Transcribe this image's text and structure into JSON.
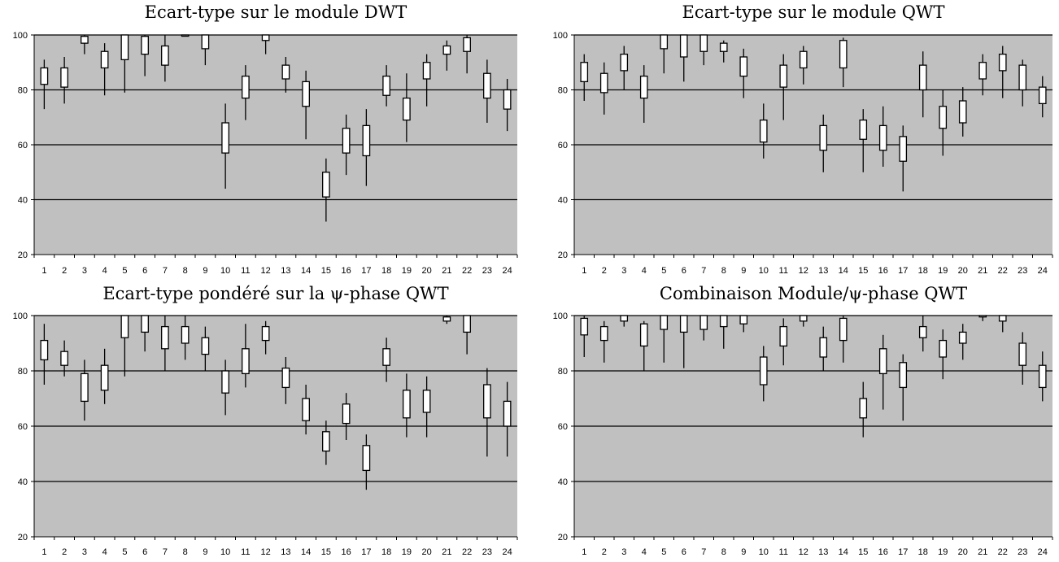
{
  "chart_data": [
    {
      "type": "candlestick",
      "title": "Ecart-type sur le module DWT",
      "ylim": [
        20,
        100
      ],
      "yticks": [
        20,
        40,
        60,
        80,
        100
      ],
      "grid": true,
      "colors": {
        "plot_bg": "#c0c0c0",
        "box_fill": "#ffffff",
        "line": "#000000"
      },
      "categories": [
        "1",
        "2",
        "3",
        "4",
        "5",
        "6",
        "7",
        "8",
        "9",
        "10",
        "11",
        "12",
        "13",
        "14",
        "15",
        "16",
        "17",
        "18",
        "19",
        "20",
        "21",
        "22",
        "23",
        "24"
      ],
      "items": [
        {
          "low": 73,
          "q1": 82,
          "q3": 88,
          "high": 91
        },
        {
          "low": 75,
          "q1": 81,
          "q3": 88,
          "high": 92
        },
        {
          "low": 93,
          "q1": 97,
          "q3": 99.5,
          "high": 100
        },
        {
          "low": 78,
          "q1": 88,
          "q3": 94,
          "high": 97
        },
        {
          "low": 79,
          "q1": 91,
          "q3": 100,
          "high": 100
        },
        {
          "low": 85,
          "q1": 93,
          "q3": 99.5,
          "high": 100
        },
        {
          "low": 83,
          "q1": 89,
          "q3": 96,
          "high": 100
        },
        {
          "low": 99.5,
          "q1": 99.7,
          "q3": 100,
          "high": 100
        },
        {
          "low": 89,
          "q1": 95,
          "q3": 100,
          "high": 100
        },
        {
          "low": 44,
          "q1": 57,
          "q3": 68,
          "high": 75
        },
        {
          "low": 69,
          "q1": 77,
          "q3": 85,
          "high": 89
        },
        {
          "low": 93,
          "q1": 98,
          "q3": 100,
          "high": 100
        },
        {
          "low": 79,
          "q1": 84,
          "q3": 89,
          "high": 92
        },
        {
          "low": 62,
          "q1": 74,
          "q3": 83,
          "high": 87
        },
        {
          "low": 32,
          "q1": 41,
          "q3": 50,
          "high": 55
        },
        {
          "low": 49,
          "q1": 57,
          "q3": 66,
          "high": 71
        },
        {
          "low": 45,
          "q1": 56,
          "q3": 67,
          "high": 73
        },
        {
          "low": 74,
          "q1": 78,
          "q3": 85,
          "high": 89
        },
        {
          "low": 61,
          "q1": 69,
          "q3": 77,
          "high": 86
        },
        {
          "low": 74,
          "q1": 84,
          "q3": 90,
          "high": 93
        },
        {
          "low": 87,
          "q1": 93,
          "q3": 96,
          "high": 98
        },
        {
          "low": 86,
          "q1": 94,
          "q3": 99,
          "high": 100
        },
        {
          "low": 68,
          "q1": 77,
          "q3": 86,
          "high": 91
        },
        {
          "low": 65,
          "q1": 73,
          "q3": 80,
          "high": 84
        }
      ]
    },
    {
      "type": "candlestick",
      "title": "Ecart-type sur le module QWT",
      "ylim": [
        20,
        100
      ],
      "yticks": [
        20,
        40,
        60,
        80,
        100
      ],
      "grid": true,
      "colors": {
        "plot_bg": "#c0c0c0",
        "box_fill": "#ffffff",
        "line": "#000000"
      },
      "categories": [
        "1",
        "2",
        "3",
        "4",
        "5",
        "6",
        "7",
        "8",
        "9",
        "10",
        "11",
        "12",
        "13",
        "14",
        "15",
        "16",
        "17",
        "18",
        "19",
        "20",
        "21",
        "22",
        "23",
        "24"
      ],
      "items": [
        {
          "low": 76,
          "q1": 83,
          "q3": 90,
          "high": 93
        },
        {
          "low": 71,
          "q1": 79,
          "q3": 86,
          "high": 90
        },
        {
          "low": 80,
          "q1": 87,
          "q3": 93,
          "high": 96
        },
        {
          "low": 68,
          "q1": 77,
          "q3": 85,
          "high": 89
        },
        {
          "low": 86,
          "q1": 95,
          "q3": 100,
          "high": 100
        },
        {
          "low": 83,
          "q1": 92,
          "q3": 100,
          "high": 100
        },
        {
          "low": 89,
          "q1": 94,
          "q3": 100,
          "high": 100
        },
        {
          "low": 90,
          "q1": 94,
          "q3": 97,
          "high": 98
        },
        {
          "low": 77,
          "q1": 85,
          "q3": 92,
          "high": 95
        },
        {
          "low": 55,
          "q1": 61,
          "q3": 69,
          "high": 75
        },
        {
          "low": 69,
          "q1": 81,
          "q3": 89,
          "high": 93
        },
        {
          "low": 82,
          "q1": 88,
          "q3": 94,
          "high": 96
        },
        {
          "low": 50,
          "q1": 58,
          "q3": 67,
          "high": 71
        },
        {
          "low": 81,
          "q1": 88,
          "q3": 98,
          "high": 99
        },
        {
          "low": 50,
          "q1": 62,
          "q3": 69,
          "high": 73
        },
        {
          "low": 52,
          "q1": 58,
          "q3": 67,
          "high": 74
        },
        {
          "low": 43,
          "q1": 54,
          "q3": 63,
          "high": 67
        },
        {
          "low": 70,
          "q1": 80,
          "q3": 89,
          "high": 94
        },
        {
          "low": 56,
          "q1": 66,
          "q3": 74,
          "high": 80
        },
        {
          "low": 63,
          "q1": 68,
          "q3": 76,
          "high": 81
        },
        {
          "low": 78,
          "q1": 84,
          "q3": 90,
          "high": 93
        },
        {
          "low": 77,
          "q1": 87,
          "q3": 93,
          "high": 96
        },
        {
          "low": 74,
          "q1": 80,
          "q3": 89,
          "high": 91
        },
        {
          "low": 70,
          "q1": 75,
          "q3": 81,
          "high": 85
        }
      ]
    },
    {
      "type": "candlestick",
      "title": "Ecart-type pondéré sur la ψ-phase QWT",
      "ylim": [
        20,
        100
      ],
      "yticks": [
        20,
        40,
        60,
        80,
        100
      ],
      "grid": true,
      "colors": {
        "plot_bg": "#c0c0c0",
        "box_fill": "#ffffff",
        "line": "#000000"
      },
      "categories": [
        "1",
        "2",
        "3",
        "4",
        "5",
        "6",
        "7",
        "8",
        "9",
        "10",
        "11",
        "12",
        "13",
        "14",
        "15",
        "16",
        "17",
        "18",
        "19",
        "20",
        "21",
        "22",
        "23",
        "24"
      ],
      "items": [
        {
          "low": 75,
          "q1": 84,
          "q3": 91,
          "high": 97
        },
        {
          "low": 78,
          "q1": 82,
          "q3": 87,
          "high": 91
        },
        {
          "low": 62,
          "q1": 69,
          "q3": 79,
          "high": 84
        },
        {
          "low": 68,
          "q1": 73,
          "q3": 82,
          "high": 88
        },
        {
          "low": 78,
          "q1": 92,
          "q3": 100,
          "high": 100
        },
        {
          "low": 87,
          "q1": 94,
          "q3": 100,
          "high": 100
        },
        {
          "low": 80,
          "q1": 88,
          "q3": 96,
          "high": 100
        },
        {
          "low": 84,
          "q1": 90,
          "q3": 96,
          "high": 100
        },
        {
          "low": 80,
          "q1": 86,
          "q3": 92,
          "high": 96
        },
        {
          "low": 64,
          "q1": 72,
          "q3": 80,
          "high": 84
        },
        {
          "low": 74,
          "q1": 79,
          "q3": 88,
          "high": 97
        },
        {
          "low": 86,
          "q1": 91,
          "q3": 96,
          "high": 98
        },
        {
          "low": 68,
          "q1": 74,
          "q3": 81,
          "high": 85
        },
        {
          "low": 57,
          "q1": 62,
          "q3": 70,
          "high": 75
        },
        {
          "low": 46,
          "q1": 51,
          "q3": 58,
          "high": 62
        },
        {
          "low": 55,
          "q1": 61,
          "q3": 68,
          "high": 72
        },
        {
          "low": 37,
          "q1": 44,
          "q3": 53,
          "high": 57
        },
        {
          "low": 76,
          "q1": 82,
          "q3": 88,
          "high": 92
        },
        {
          "low": 56,
          "q1": 63,
          "q3": 73,
          "high": 79
        },
        {
          "low": 56,
          "q1": 65,
          "q3": 73,
          "high": 78
        },
        {
          "low": 97,
          "q1": 98,
          "q3": 99.5,
          "high": 100
        },
        {
          "low": 86,
          "q1": 94,
          "q3": 100,
          "high": 100
        },
        {
          "low": 49,
          "q1": 63,
          "q3": 75,
          "high": 81
        },
        {
          "low": 49,
          "q1": 60,
          "q3": 69,
          "high": 76
        }
      ]
    },
    {
      "type": "candlestick",
      "title": "Combinaison Module/ψ-phase QWT",
      "ylim": [
        20,
        100
      ],
      "yticks": [
        20,
        40,
        60,
        80,
        100
      ],
      "grid": true,
      "colors": {
        "plot_bg": "#c0c0c0",
        "box_fill": "#ffffff",
        "line": "#000000"
      },
      "categories": [
        "1",
        "2",
        "3",
        "4",
        "5",
        "6",
        "7",
        "8",
        "9",
        "10",
        "11",
        "12",
        "13",
        "14",
        "15",
        "16",
        "17",
        "18",
        "19",
        "20",
        "21",
        "22",
        "23",
        "24"
      ],
      "items": [
        {
          "low": 85,
          "q1": 93,
          "q3": 99,
          "high": 100
        },
        {
          "low": 83,
          "q1": 91,
          "q3": 96,
          "high": 98
        },
        {
          "low": 96,
          "q1": 98,
          "q3": 100,
          "high": 100
        },
        {
          "low": 80,
          "q1": 89,
          "q3": 97,
          "high": 98
        },
        {
          "low": 83,
          "q1": 95,
          "q3": 100,
          "high": 100
        },
        {
          "low": 81,
          "q1": 94,
          "q3": 100,
          "high": 100
        },
        {
          "low": 91,
          "q1": 95,
          "q3": 100,
          "high": 100
        },
        {
          "low": 88,
          "q1": 96,
          "q3": 100,
          "high": 100
        },
        {
          "low": 94,
          "q1": 97,
          "q3": 100,
          "high": 100
        },
        {
          "low": 69,
          "q1": 75,
          "q3": 85,
          "high": 89
        },
        {
          "low": 82,
          "q1": 89,
          "q3": 96,
          "high": 99
        },
        {
          "low": 96,
          "q1": 98,
          "q3": 100,
          "high": 100
        },
        {
          "low": 80,
          "q1": 85,
          "q3": 92,
          "high": 96
        },
        {
          "low": 83,
          "q1": 91,
          "q3": 99,
          "high": 100
        },
        {
          "low": 56,
          "q1": 63,
          "q3": 70,
          "high": 76
        },
        {
          "low": 66,
          "q1": 79,
          "q3": 88,
          "high": 93
        },
        {
          "low": 62,
          "q1": 74,
          "q3": 83,
          "high": 86
        },
        {
          "low": 87,
          "q1": 92,
          "q3": 96,
          "high": 100
        },
        {
          "low": 77,
          "q1": 85,
          "q3": 91,
          "high": 95
        },
        {
          "low": 84,
          "q1": 90,
          "q3": 94,
          "high": 97
        },
        {
          "low": 98,
          "q1": 99.5,
          "q3": 100,
          "high": 100
        },
        {
          "low": 94,
          "q1": 98,
          "q3": 100,
          "high": 100
        },
        {
          "low": 75,
          "q1": 82,
          "q3": 90,
          "high": 94
        },
        {
          "low": 69,
          "q1": 74,
          "q3": 82,
          "high": 87
        }
      ]
    }
  ]
}
